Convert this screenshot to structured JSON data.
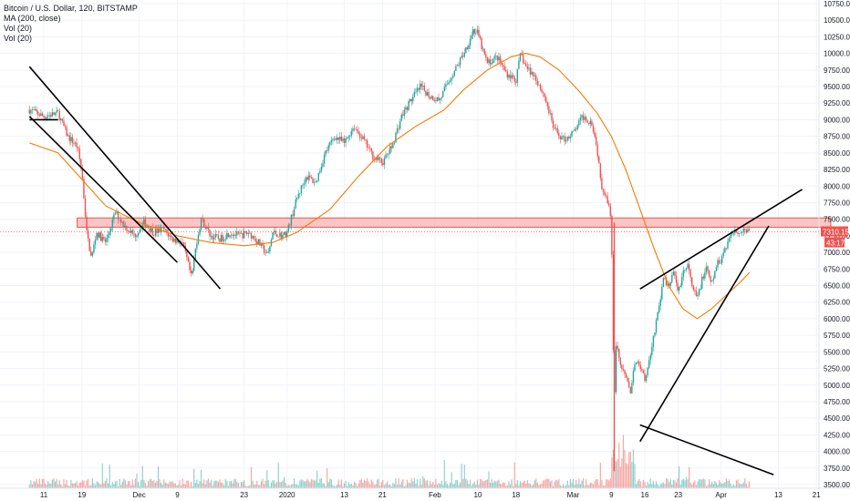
{
  "legend": {
    "title": "Bitcoin / U.S. Dollar, 120, BITSTAMP",
    "ma": "MA (200, close)",
    "vol1": "Vol (20)",
    "vol2": "Vol (20)"
  },
  "colors": {
    "up": "#26a69a",
    "down": "#ef5350",
    "ma": "#f57c00",
    "zone_fill": "#f8bbbb",
    "zone_stroke": "#e53935",
    "trendline": "#000000",
    "grid": "#f0f3fa",
    "price_badge": "#ef5350"
  },
  "chart_data": {
    "type": "candlestick",
    "y_axis": {
      "min": 3500,
      "max": 10750,
      "step": 250,
      "ticks": [
        "10750.00",
        "10500.00",
        "10250.00",
        "10000.00",
        "9750.00",
        "9500.00",
        "9250.00",
        "9000.00",
        "8750.00",
        "8500.00",
        "8250.00",
        "8000.00",
        "7750.00",
        "7500.00",
        "7250.00",
        "7000.00",
        "6750.00",
        "6500.00",
        "6250.00",
        "6000.00",
        "5750.00",
        "5500.00",
        "5250.00",
        "5000.00",
        "4750.00",
        "4500.00",
        "4250.00",
        "4000.00",
        "3750.00",
        "3500.00"
      ]
    },
    "x_axis": {
      "ticks": [
        {
          "label": "11",
          "day": 0
        },
        {
          "label": "19",
          "day": 8
        },
        {
          "label": "Dec",
          "day": 20
        },
        {
          "label": "9",
          "day": 28
        },
        {
          "label": "23",
          "day": 42
        },
        {
          "label": "2020",
          "day": 51
        },
        {
          "label": "13",
          "day": 63
        },
        {
          "label": "21",
          "day": 71
        },
        {
          "label": "Feb",
          "day": 82
        },
        {
          "label": "10",
          "day": 91
        },
        {
          "label": "18",
          "day": 99
        },
        {
          "label": "Mar",
          "day": 111
        },
        {
          "label": "9",
          "day": 119
        },
        {
          "label": "16",
          "day": 126
        },
        {
          "label": "23",
          "day": 133
        },
        {
          "label": "Apr",
          "day": 142
        },
        {
          "label": "13",
          "day": 154
        },
        {
          "label": "21",
          "day": 162
        }
      ]
    },
    "price_path": [
      [
        -3,
        9150
      ],
      [
        0,
        9050
      ],
      [
        3,
        9100
      ],
      [
        5,
        8750
      ],
      [
        7,
        8600
      ],
      [
        8,
        8200
      ],
      [
        9,
        7300
      ],
      [
        10,
        6900
      ],
      [
        11,
        7300
      ],
      [
        13,
        7150
      ],
      [
        15,
        7600
      ],
      [
        17,
        7400
      ],
      [
        19,
        7250
      ],
      [
        21,
        7450
      ],
      [
        23,
        7300
      ],
      [
        25,
        7350
      ],
      [
        27,
        7200
      ],
      [
        29,
        7150
      ],
      [
        30,
        6900
      ],
      [
        31,
        6600
      ],
      [
        32,
        7150
      ],
      [
        33,
        7500
      ],
      [
        35,
        7250
      ],
      [
        37,
        7200
      ],
      [
        39,
        7300
      ],
      [
        41,
        7250
      ],
      [
        43,
        7300
      ],
      [
        45,
        7150
      ],
      [
        46,
        7050
      ],
      [
        47,
        6950
      ],
      [
        48,
        7300
      ],
      [
        50,
        7250
      ],
      [
        51,
        7300
      ],
      [
        53,
        7800
      ],
      [
        55,
        8150
      ],
      [
        57,
        8050
      ],
      [
        59,
        8500
      ],
      [
        61,
        8750
      ],
      [
        63,
        8650
      ],
      [
        65,
        8900
      ],
      [
        67,
        8700
      ],
      [
        69,
        8450
      ],
      [
        71,
        8350
      ],
      [
        73,
        8600
      ],
      [
        75,
        9050
      ],
      [
        77,
        9300
      ],
      [
        79,
        9500
      ],
      [
        81,
        9350
      ],
      [
        83,
        9300
      ],
      [
        85,
        9600
      ],
      [
        87,
        9850
      ],
      [
        89,
        10150
      ],
      [
        90,
        10350
      ],
      [
        91,
        10300
      ],
      [
        92,
        10050
      ],
      [
        93,
        9850
      ],
      [
        95,
        9950
      ],
      [
        97,
        9700
      ],
      [
        99,
        9600
      ],
      [
        100,
        10000
      ],
      [
        101,
        9800
      ],
      [
        103,
        9650
      ],
      [
        105,
        9350
      ],
      [
        107,
        8850
      ],
      [
        109,
        8700
      ],
      [
        111,
        8800
      ],
      [
        113,
        9050
      ],
      [
        115,
        8950
      ],
      [
        116,
        8550
      ],
      [
        117,
        8000
      ],
      [
        118,
        7850
      ],
      [
        119,
        7500
      ],
      [
        119.6,
        4600
      ],
      [
        120,
        5600
      ],
      [
        121,
        5300
      ],
      [
        122,
        5100
      ],
      [
        123,
        4900
      ],
      [
        124,
        5400
      ],
      [
        125,
        5300
      ],
      [
        126,
        5100
      ],
      [
        127,
        5400
      ],
      [
        128,
        5800
      ],
      [
        129,
        6200
      ],
      [
        130,
        6600
      ],
      [
        131,
        6500
      ],
      [
        132,
        6700
      ],
      [
        133,
        6400
      ],
      [
        134,
        6700
      ],
      [
        135,
        6800
      ],
      [
        136,
        6450
      ],
      [
        137,
        6300
      ],
      [
        138,
        6600
      ],
      [
        139,
        6750
      ],
      [
        140,
        6500
      ],
      [
        141,
        6800
      ],
      [
        142,
        6900
      ],
      [
        143,
        7100
      ],
      [
        144,
        7250
      ],
      [
        145,
        7350
      ],
      [
        146,
        7300
      ],
      [
        147,
        7350
      ],
      [
        148,
        7310
      ]
    ],
    "ma_path": [
      [
        -3,
        8650
      ],
      [
        3,
        8500
      ],
      [
        8,
        8100
      ],
      [
        13,
        7700
      ],
      [
        20,
        7450
      ],
      [
        28,
        7250
      ],
      [
        35,
        7150
      ],
      [
        42,
        7100
      ],
      [
        48,
        7150
      ],
      [
        53,
        7300
      ],
      [
        60,
        7650
      ],
      [
        66,
        8150
      ],
      [
        72,
        8600
      ],
      [
        78,
        8900
      ],
      [
        84,
        9150
      ],
      [
        88,
        9450
      ],
      [
        93,
        9750
      ],
      [
        98,
        9950
      ],
      [
        101,
        10000
      ],
      [
        104,
        9950
      ],
      [
        108,
        9750
      ],
      [
        112,
        9450
      ],
      [
        116,
        9100
      ],
      [
        119,
        8750
      ],
      [
        122,
        8250
      ],
      [
        125,
        7650
      ],
      [
        128,
        7050
      ],
      [
        131,
        6500
      ],
      [
        134,
        6150
      ],
      [
        137,
        6000
      ],
      [
        140,
        6150
      ],
      [
        143,
        6350
      ],
      [
        146,
        6550
      ],
      [
        148,
        6700
      ]
    ],
    "resistance_zone": {
      "low": 7380,
      "high": 7520,
      "from_day": 7,
      "to_day": 165
    },
    "trendlines": [
      [
        [
          -3,
          9800
        ],
        [
          37,
          6450
        ]
      ],
      [
        [
          -3,
          9050
        ],
        [
          28,
          6850
        ]
      ],
      [
        [
          -3,
          9000
        ],
        [
          3,
          9000
        ]
      ],
      [
        [
          125,
          6450
        ],
        [
          159,
          7950
        ]
      ],
      [
        [
          125,
          4150
        ],
        [
          152,
          7400
        ]
      ],
      [
        [
          125,
          4400
        ],
        [
          153,
          3650
        ]
      ]
    ],
    "last_price": {
      "value": 7310,
      "label": "7310.15"
    },
    "countdown": "43:17",
    "volume": {
      "min_day": -3,
      "max_day": 148,
      "scale_max": 1
    }
  }
}
